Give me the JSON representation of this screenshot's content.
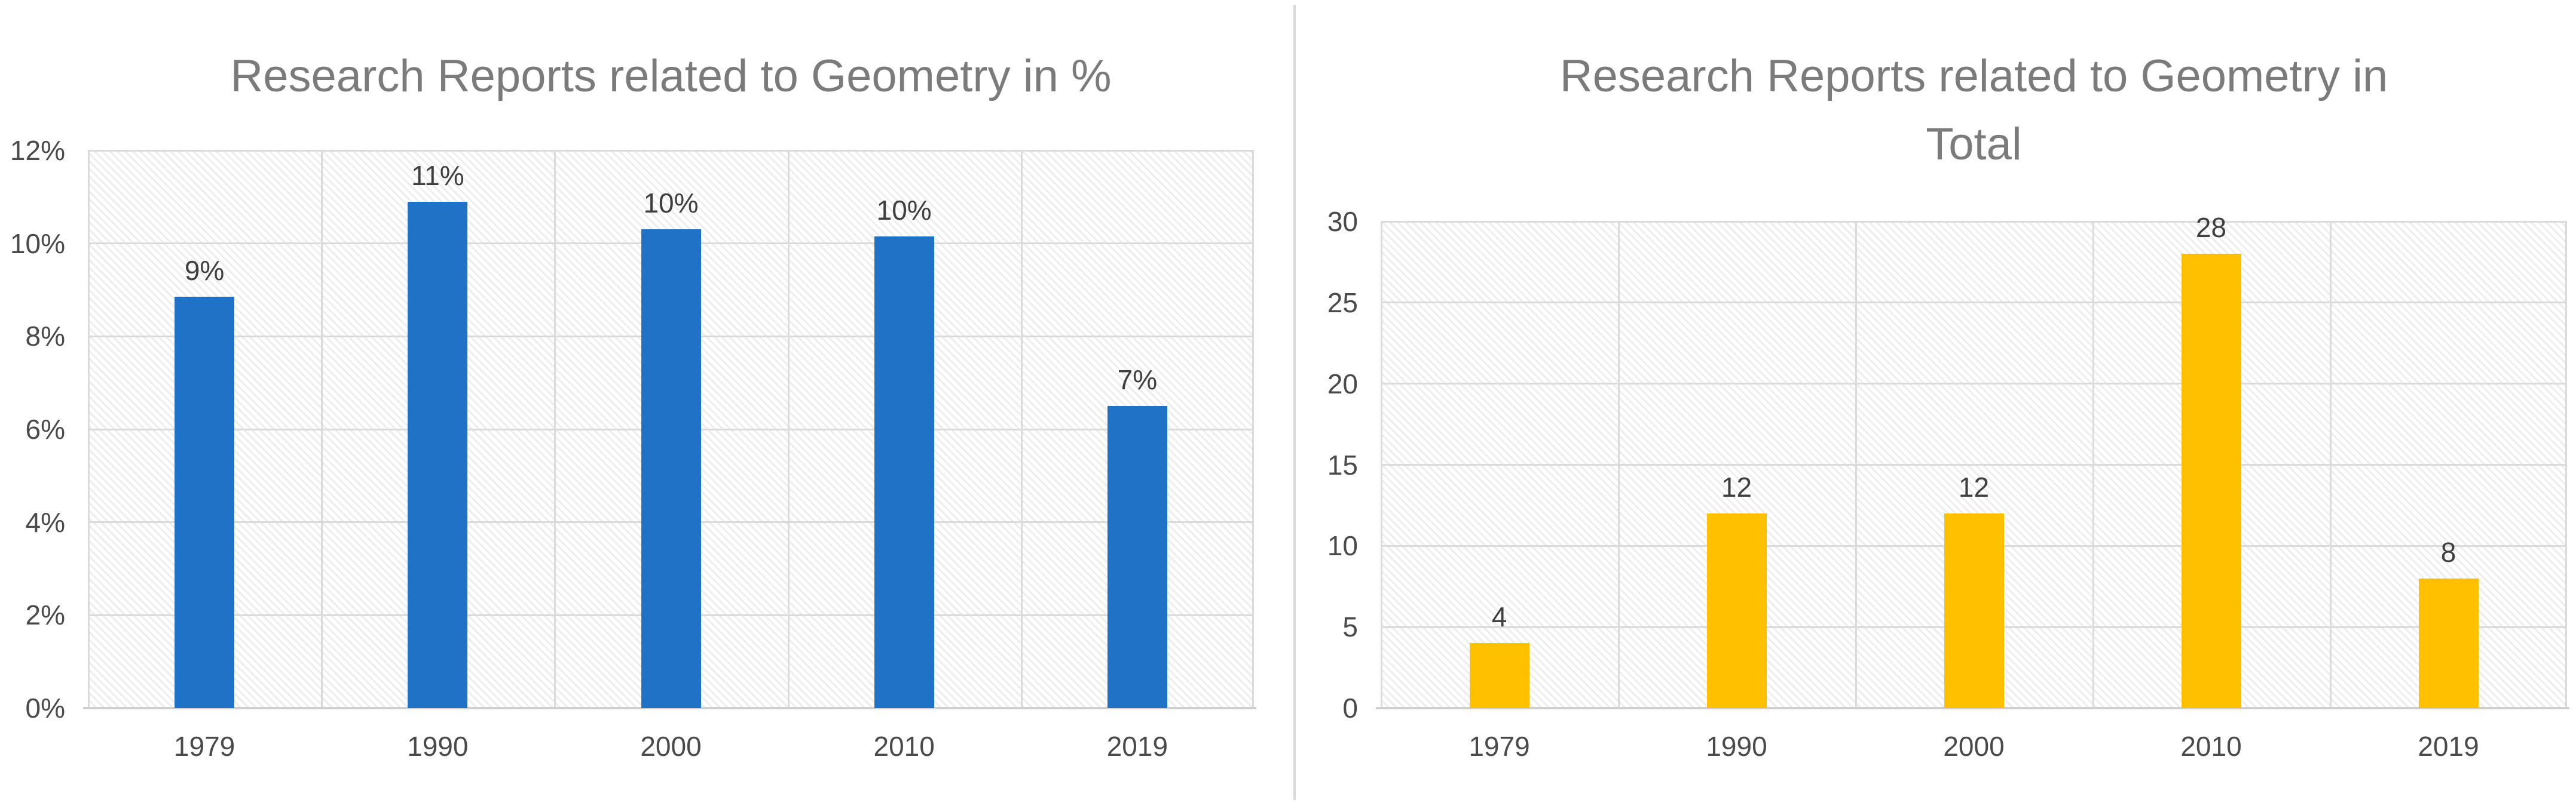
{
  "page": {
    "background": "#ffffff",
    "divider_color": "#d9d9d9"
  },
  "colors": {
    "grid": "#dbdbdb",
    "axis": "#cfcfcf",
    "hatch": "#ededed",
    "title_text": "#7b7b7b",
    "tick_text": "#4a4a4a",
    "data_label_text": "#3f3f3f",
    "bar_blue": "#1f72c6",
    "bar_gold": "#ffc000"
  },
  "chart_data": [
    {
      "type": "bar",
      "title": "Research Reports related to Geometry in %",
      "title_lines": [
        "Research Reports related to Geometry in %"
      ],
      "categories": [
        "1979",
        "1990",
        "2000",
        "2010",
        "2019"
      ],
      "values": [
        8.85,
        10.9,
        10.3,
        10.15,
        6.5
      ],
      "data_labels": [
        "9%",
        "11%",
        "10%",
        "10%",
        "7%"
      ],
      "bar_color": "#1f72c6",
      "xlabel": "",
      "ylabel": "",
      "ylim": [
        0,
        12
      ],
      "ytick_step": 2,
      "ytick_labels": [
        "0%",
        "2%",
        "4%",
        "6%",
        "8%",
        "10%",
        "12%"
      ],
      "grid": "horizontal-and-vertical",
      "legend": "none",
      "plot_fill": "diagonal-hatch"
    },
    {
      "type": "bar",
      "title": "Research Reports related to Geometry in Total",
      "title_lines": [
        "Research Reports related to Geometry in",
        "Total"
      ],
      "categories": [
        "1979",
        "1990",
        "2000",
        "2010",
        "2019"
      ],
      "values": [
        4,
        12,
        12,
        28,
        8
      ],
      "data_labels": [
        "4",
        "12",
        "12",
        "28",
        "8"
      ],
      "bar_color": "#ffc000",
      "xlabel": "",
      "ylabel": "",
      "ylim": [
        0,
        30
      ],
      "ytick_step": 5,
      "ytick_labels": [
        "0",
        "5",
        "10",
        "15",
        "20",
        "25",
        "30"
      ],
      "grid": "horizontal-and-vertical",
      "legend": "none",
      "plot_fill": "diagonal-hatch"
    }
  ]
}
